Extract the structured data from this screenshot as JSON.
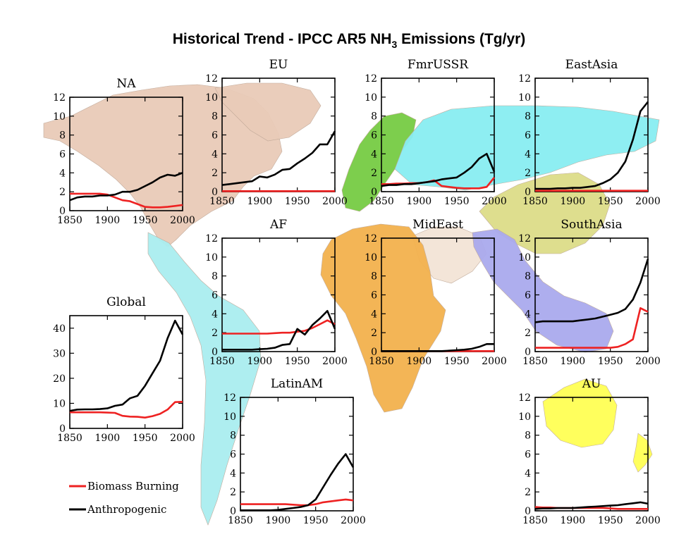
{
  "title": {
    "prefix": "Historical Trend - IPCC AR5 NH",
    "subscript": "3",
    "suffix": " Emissions (Tg/yr)"
  },
  "colors": {
    "biomass": "#ee2222",
    "anthropogenic": "#000000",
    "na_land": "#e9cbb8",
    "eu_land": "#77cc44",
    "ussr_land": "#88eef2",
    "eastasia_land": "#dddd88",
    "mideast_land": "#f3e4d6",
    "af_land": "#f3b24e",
    "southasia_land": "#aaaaee",
    "latinam_land": "#aaeef0",
    "au_land": "#ffff55"
  },
  "legend": [
    {
      "label": "Biomass Burning",
      "color": "#ee2222"
    },
    {
      "label": "Anthropogenic",
      "color": "#000000"
    }
  ],
  "chart_data": [
    {
      "id": "NA",
      "type": "line",
      "title": "NA",
      "xlim": [
        1850,
        2000
      ],
      "ylim": [
        0,
        12
      ],
      "yticks": [
        0,
        2,
        4,
        6,
        8,
        10,
        12
      ],
      "xticks": [
        1850,
        1900,
        1950,
        2000
      ],
      "x": [
        1850,
        1860,
        1870,
        1880,
        1890,
        1900,
        1910,
        1920,
        1930,
        1940,
        1950,
        1960,
        1970,
        1980,
        1990,
        2000
      ],
      "series": [
        {
          "name": "Biomass Burning",
          "values": [
            1.8,
            1.8,
            1.8,
            1.8,
            1.8,
            1.7,
            1.4,
            1.1,
            1.0,
            0.7,
            0.4,
            0.35,
            0.35,
            0.4,
            0.5,
            0.6
          ]
        },
        {
          "name": "Anthropogenic",
          "values": [
            1.1,
            1.4,
            1.5,
            1.5,
            1.6,
            1.6,
            1.7,
            2.0,
            2.0,
            2.2,
            2.6,
            3.0,
            3.5,
            3.8,
            3.7,
            4.0
          ]
        }
      ]
    },
    {
      "id": "EU",
      "type": "line",
      "title": "EU",
      "xlim": [
        1850,
        2000
      ],
      "ylim": [
        0,
        12
      ],
      "yticks": [
        0,
        2,
        4,
        6,
        8,
        10,
        12
      ],
      "xticks": [
        1850,
        1900,
        1950,
        2000
      ],
      "x": [
        1850,
        1860,
        1870,
        1880,
        1890,
        1900,
        1910,
        1920,
        1930,
        1940,
        1950,
        1960,
        1970,
        1980,
        1990,
        2000
      ],
      "series": [
        {
          "name": "Biomass Burning",
          "values": [
            0.05,
            0.05,
            0.05,
            0.05,
            0.05,
            0.05,
            0.05,
            0.05,
            0.05,
            0.05,
            0.05,
            0.05,
            0.05,
            0.05,
            0.05,
            0.05
          ]
        },
        {
          "name": "Anthropogenic",
          "values": [
            0.7,
            0.8,
            0.9,
            1.0,
            1.1,
            1.6,
            1.5,
            1.8,
            2.3,
            2.4,
            3.0,
            3.5,
            4.1,
            5.0,
            5.0,
            6.4
          ]
        }
      ]
    },
    {
      "id": "FmrUSSR",
      "type": "line",
      "title": "FmrUSSR",
      "xlim": [
        1850,
        2000
      ],
      "ylim": [
        0,
        12
      ],
      "yticks": [
        0,
        2,
        4,
        6,
        8,
        10,
        12
      ],
      "xticks": [
        1850,
        1900,
        1950,
        2000
      ],
      "x": [
        1850,
        1860,
        1870,
        1880,
        1890,
        1900,
        1910,
        1920,
        1930,
        1940,
        1950,
        1960,
        1970,
        1980,
        1990,
        2000
      ],
      "series": [
        {
          "name": "Biomass Burning",
          "values": [
            0.8,
            0.8,
            0.85,
            0.85,
            0.9,
            0.9,
            1.0,
            1.2,
            0.6,
            0.5,
            0.4,
            0.35,
            0.35,
            0.35,
            0.5,
            1.5
          ]
        },
        {
          "name": "Anthropogenic",
          "values": [
            0.6,
            0.7,
            0.7,
            0.8,
            0.8,
            0.9,
            1.0,
            1.1,
            1.3,
            1.4,
            1.5,
            2.0,
            2.6,
            3.5,
            4.0,
            2.1
          ]
        }
      ]
    },
    {
      "id": "EastAsia",
      "type": "line",
      "title": "EastAsia",
      "xlim": [
        1850,
        2000
      ],
      "ylim": [
        0,
        12
      ],
      "yticks": [
        0,
        2,
        4,
        6,
        8,
        10,
        12
      ],
      "xticks": [
        1850,
        1900,
        1950,
        2000
      ],
      "x": [
        1850,
        1860,
        1870,
        1880,
        1890,
        1900,
        1910,
        1920,
        1930,
        1940,
        1950,
        1960,
        1970,
        1980,
        1990,
        2000
      ],
      "series": [
        {
          "name": "Biomass Burning",
          "values": [
            0.1,
            0.1,
            0.1,
            0.1,
            0.1,
            0.1,
            0.1,
            0.1,
            0.1,
            0.1,
            0.1,
            0.1,
            0.1,
            0.1,
            0.1,
            0.1
          ]
        },
        {
          "name": "Anthropogenic",
          "values": [
            0.3,
            0.3,
            0.3,
            0.35,
            0.35,
            0.4,
            0.4,
            0.5,
            0.6,
            0.9,
            1.3,
            2.0,
            3.2,
            5.5,
            8.5,
            9.5
          ]
        }
      ]
    },
    {
      "id": "AF",
      "type": "line",
      "title": "AF",
      "xlim": [
        1850,
        2000
      ],
      "ylim": [
        0,
        12
      ],
      "yticks": [
        0,
        2,
        4,
        6,
        8,
        10,
        12
      ],
      "xticks": [
        1850,
        1900,
        1950,
        2000
      ],
      "x": [
        1850,
        1860,
        1870,
        1880,
        1890,
        1900,
        1910,
        1920,
        1930,
        1940,
        1950,
        1960,
        1970,
        1980,
        1990,
        2000
      ],
      "series": [
        {
          "name": "Biomass Burning",
          "values": [
            1.9,
            1.9,
            1.9,
            1.9,
            1.9,
            1.9,
            1.9,
            1.95,
            2.0,
            2.0,
            2.1,
            2.2,
            2.5,
            2.9,
            3.3,
            2.9
          ]
        },
        {
          "name": "Anthropogenic",
          "values": [
            0.2,
            0.2,
            0.2,
            0.2,
            0.2,
            0.25,
            0.3,
            0.4,
            0.7,
            0.8,
            2.4,
            1.8,
            2.8,
            3.5,
            4.3,
            2.4
          ]
        }
      ]
    },
    {
      "id": "MidEast",
      "type": "line",
      "title": "MidEast",
      "xlim": [
        1850,
        2000
      ],
      "ylim": [
        0,
        12
      ],
      "yticks": [
        0,
        2,
        4,
        6,
        8,
        10,
        12
      ],
      "xticks": [
        1850,
        1900,
        1950,
        2000
      ],
      "x": [
        1850,
        1860,
        1870,
        1880,
        1890,
        1900,
        1910,
        1920,
        1930,
        1940,
        1950,
        1960,
        1970,
        1980,
        1990,
        2000
      ],
      "series": [
        {
          "name": "Biomass Burning",
          "values": [
            0.05,
            0.05,
            0.05,
            0.05,
            0.05,
            0.05,
            0.05,
            0.05,
            0.05,
            0.05,
            0.05,
            0.05,
            0.05,
            0.05,
            0.05,
            0.05
          ]
        },
        {
          "name": "Anthropogenic",
          "values": [
            0.05,
            0.05,
            0.05,
            0.05,
            0.05,
            0.05,
            0.05,
            0.05,
            0.05,
            0.1,
            0.15,
            0.2,
            0.3,
            0.5,
            0.8,
            0.8
          ]
        }
      ]
    },
    {
      "id": "SouthAsia",
      "type": "line",
      "title": "SouthAsia",
      "xlim": [
        1850,
        2000
      ],
      "ylim": [
        0,
        12
      ],
      "yticks": [
        0,
        2,
        4,
        6,
        8,
        10,
        12
      ],
      "xticks": [
        1850,
        1900,
        1950,
        2000
      ],
      "x": [
        1850,
        1860,
        1870,
        1880,
        1890,
        1900,
        1910,
        1920,
        1930,
        1940,
        1950,
        1960,
        1970,
        1980,
        1990,
        2000
      ],
      "series": [
        {
          "name": "Biomass Burning",
          "values": [
            0.4,
            0.4,
            0.4,
            0.4,
            0.4,
            0.4,
            0.4,
            0.4,
            0.4,
            0.4,
            0.4,
            0.5,
            0.8,
            1.3,
            4.6,
            4.2
          ]
        },
        {
          "name": "Anthropogenic",
          "values": [
            3.1,
            3.2,
            3.2,
            3.2,
            3.2,
            3.2,
            3.3,
            3.4,
            3.5,
            3.7,
            3.9,
            4.1,
            4.5,
            5.5,
            7.3,
            9.8
          ]
        }
      ]
    },
    {
      "id": "Global",
      "type": "line",
      "title": "Global",
      "xlim": [
        1850,
        2000
      ],
      "ylim": [
        0,
        45
      ],
      "yticks": [
        0,
        10,
        20,
        30,
        40
      ],
      "xticks": [
        1850,
        1900,
        1950,
        2000
      ],
      "x": [
        1850,
        1860,
        1870,
        1880,
        1890,
        1900,
        1910,
        1920,
        1930,
        1940,
        1950,
        1960,
        1970,
        1980,
        1990,
        2000
      ],
      "series": [
        {
          "name": "Biomass Burning",
          "values": [
            6.4,
            6.4,
            6.4,
            6.4,
            6.4,
            6.3,
            6.2,
            5.0,
            4.7,
            4.6,
            4.3,
            4.9,
            5.8,
            7.5,
            10.5,
            10.6
          ]
        },
        {
          "name": "Anthropogenic",
          "values": [
            7.0,
            7.5,
            7.6,
            7.6,
            7.7,
            8.0,
            9.0,
            9.5,
            12.0,
            13.0,
            17.0,
            22.0,
            27.0,
            36.0,
            43.0,
            37.5
          ]
        }
      ]
    },
    {
      "id": "LatinAM",
      "type": "line",
      "title": "LatinAM",
      "xlim": [
        1850,
        2000
      ],
      "ylim": [
        0,
        12
      ],
      "yticks": [
        0,
        2,
        4,
        6,
        8,
        10,
        12
      ],
      "xticks": [
        1850,
        1900,
        1950,
        2000
      ],
      "x": [
        1850,
        1860,
        1870,
        1880,
        1890,
        1900,
        1910,
        1920,
        1930,
        1940,
        1950,
        1960,
        1970,
        1980,
        1990,
        2000
      ],
      "series": [
        {
          "name": "Biomass Burning",
          "values": [
            0.7,
            0.7,
            0.7,
            0.7,
            0.7,
            0.7,
            0.7,
            0.65,
            0.6,
            0.6,
            0.7,
            0.9,
            1.0,
            1.1,
            1.2,
            1.1
          ]
        },
        {
          "name": "Anthropogenic",
          "values": [
            0.05,
            0.05,
            0.05,
            0.05,
            0.05,
            0.1,
            0.2,
            0.3,
            0.4,
            0.6,
            1.2,
            2.5,
            3.8,
            5.0,
            6.0,
            4.6
          ]
        }
      ]
    },
    {
      "id": "AU",
      "type": "line",
      "title": "AU",
      "xlim": [
        1850,
        2000
      ],
      "ylim": [
        0,
        12
      ],
      "yticks": [
        0,
        2,
        4,
        6,
        8,
        10,
        12
      ],
      "xticks": [
        1850,
        1900,
        1950,
        2000
      ],
      "x": [
        1850,
        1860,
        1870,
        1880,
        1890,
        1900,
        1910,
        1920,
        1930,
        1940,
        1950,
        1960,
        1970,
        1980,
        1990,
        2000
      ],
      "series": [
        {
          "name": "Biomass Burning",
          "values": [
            0.4,
            0.35,
            0.35,
            0.3,
            0.3,
            0.3,
            0.3,
            0.3,
            0.3,
            0.3,
            0.25,
            0.2,
            0.2,
            0.2,
            0.2,
            0.2
          ]
        },
        {
          "name": "Anthropogenic",
          "values": [
            0.2,
            0.25,
            0.25,
            0.3,
            0.3,
            0.3,
            0.35,
            0.4,
            0.45,
            0.5,
            0.55,
            0.6,
            0.7,
            0.8,
            0.9,
            0.75
          ]
        }
      ]
    }
  ]
}
